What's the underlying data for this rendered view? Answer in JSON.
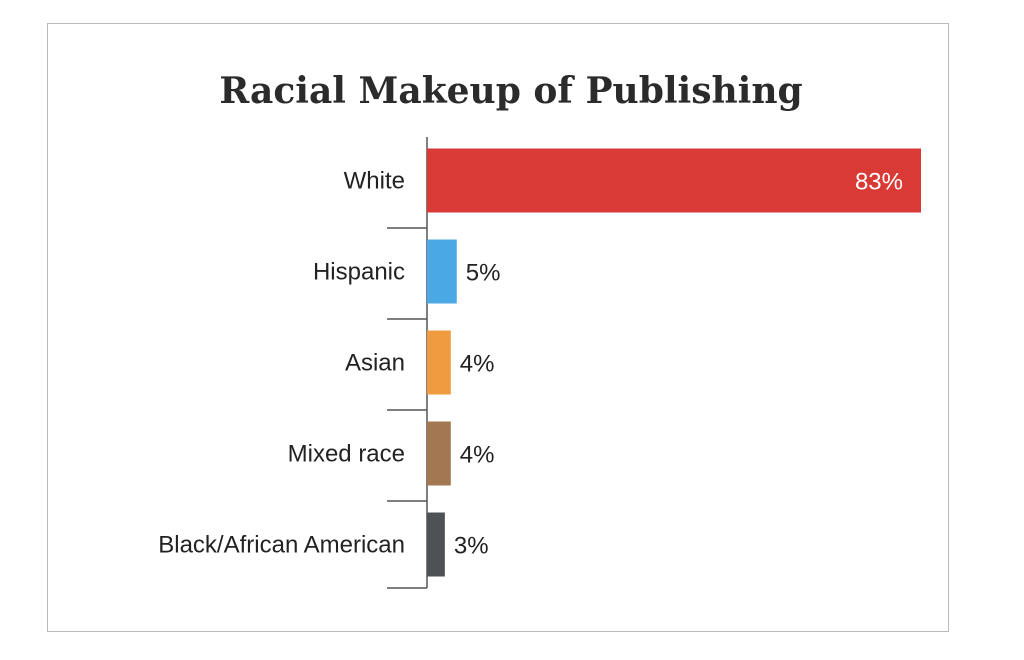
{
  "chart_data": {
    "type": "bar",
    "orientation": "horizontal",
    "title": "Racial Makeup of Publishing",
    "categories": [
      "White",
      "Hispanic",
      "Asian",
      "Mixed race",
      "Black/African American"
    ],
    "values": [
      83,
      5,
      4,
      4,
      3
    ],
    "value_labels": [
      "83%",
      "5%",
      "4%",
      "4%",
      "3%"
    ],
    "colors": [
      "#d93a35",
      "#4aa8e4",
      "#ee9c3f",
      "#a27752",
      "#4f5254"
    ],
    "xlim": [
      0,
      83
    ],
    "grid": false,
    "legend": "none"
  }
}
